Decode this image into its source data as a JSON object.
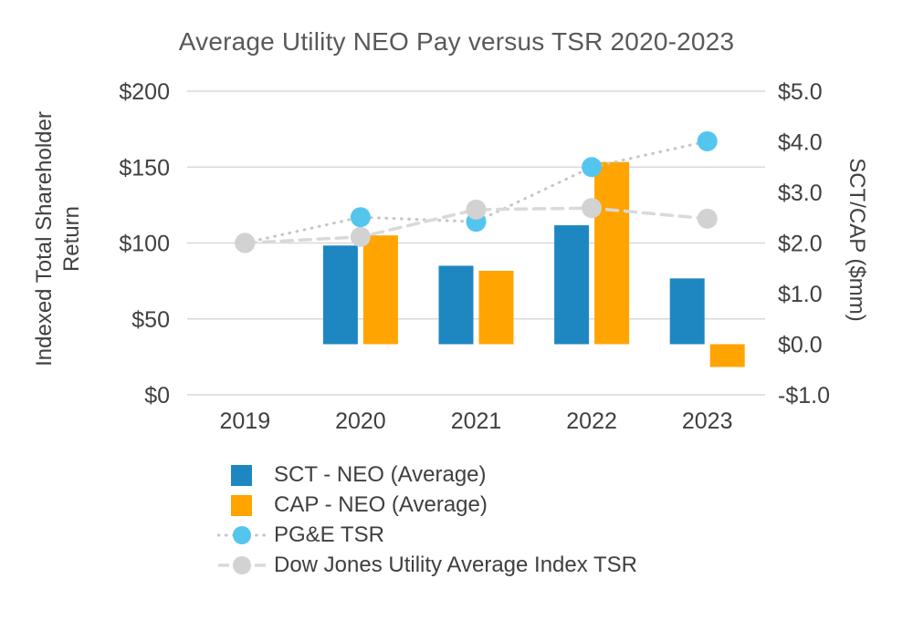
{
  "chart_data": {
    "type": "combo-bar-line",
    "title": "Average Utility NEO Pay versus TSR 2020-2023",
    "categories": [
      "2019",
      "2020",
      "2021",
      "2022",
      "2023"
    ],
    "left_axis": {
      "label": "Indexed Total Shareholder Return",
      "min": 0,
      "max": 200,
      "tick_labels": [
        "$200",
        "$150",
        "$100",
        "$50",
        "$0"
      ]
    },
    "right_axis": {
      "label": "SCT/CAP ($mm)",
      "min": -1.0,
      "max": 5.0,
      "tick_labels": [
        "$5.0",
        "$4.0",
        "$3.0",
        "$2.0",
        "$1.0",
        "$0.0",
        "-$1.0"
      ]
    },
    "bar_series": [
      {
        "name": "SCT - NEO (Average)",
        "axis": "right",
        "color": "#1e87c2",
        "values": [
          null,
          1.95,
          1.55,
          2.35,
          1.3
        ]
      },
      {
        "name": "CAP - NEO (Average)",
        "axis": "right",
        "color": "#ffa400",
        "values": [
          null,
          2.15,
          1.45,
          3.6,
          -0.45
        ]
      }
    ],
    "line_series": [
      {
        "name": "PG&E TSR",
        "axis": "left",
        "style": "dotted",
        "line_color": "#c6c6c6",
        "marker_color": "#54c6ee",
        "values": [
          100,
          117,
          114,
          150,
          167
        ]
      },
      {
        "name": "Dow Jones Utility Average Index TSR",
        "axis": "left",
        "style": "dashed",
        "line_color": "#d9d9d9",
        "marker_color": "#d2d2d2",
        "values": [
          100,
          104,
          122,
          123,
          116
        ]
      }
    ],
    "grid": "horizontal",
    "legend_position": "bottom-left"
  },
  "colors": {
    "gridline": "#d9d9d9",
    "tick_text": "#404040",
    "title_text": "#595959"
  }
}
